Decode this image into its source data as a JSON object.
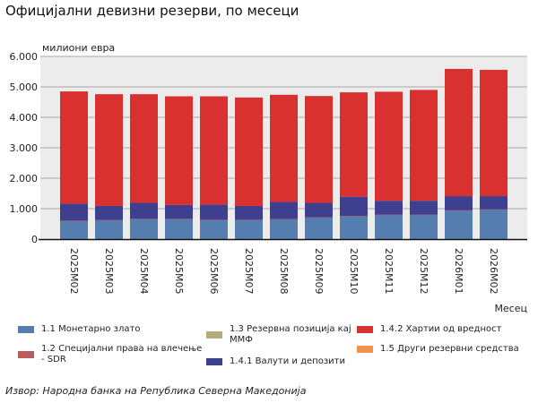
{
  "page": {
    "title": "Официјални девизни резерви, по месеци",
    "source": "Извор: Народна банка на Република Северна Македонија"
  },
  "chart_data": {
    "type": "bar",
    "stacked": true,
    "title": "Официјални девизни резерви, по месеци",
    "ylabel": "милиони евра",
    "xlabel": "Месец",
    "ylim": [
      0,
      6000
    ],
    "yticks": [
      0,
      1000,
      2000,
      3000,
      4000,
      5000,
      6000
    ],
    "ytick_labels": [
      "0",
      "1.000",
      "2.000",
      "3.000",
      "4.000",
      "5.000",
      "6.000"
    ],
    "grid": true,
    "legend_position": "bottom",
    "categories": [
      "2025M02",
      "2025M03",
      "2025M04",
      "2025M05",
      "2025M06",
      "2025M07",
      "2025M08",
      "2025M09",
      "2025M10",
      "2025M11",
      "2025M12",
      "2026M01",
      "2026M02"
    ],
    "series": [
      {
        "name": "1.1 Монетарно злато",
        "color": "#557eb0",
        "values": [
          600,
          620,
          660,
          660,
          630,
          630,
          650,
          710,
          760,
          800,
          800,
          940,
          970
        ]
      },
      {
        "name": "1.2 Специјални права на влечење - SDR",
        "color": "#b85c5c",
        "values": [
          5,
          5,
          5,
          5,
          5,
          5,
          5,
          5,
          5,
          5,
          5,
          5,
          5
        ]
      },
      {
        "name": "1.3 Резервна позиција кај ММФ",
        "color": "#b5ab78",
        "values": [
          0,
          0,
          0,
          0,
          0,
          0,
          0,
          0,
          0,
          0,
          0,
          0,
          0
        ]
      },
      {
        "name": "1.4.1 Валути и депозити",
        "color": "#3f3f8f",
        "values": [
          555,
          465,
          525,
          455,
          495,
          455,
          565,
          475,
          625,
          455,
          455,
          465,
          435
        ]
      },
      {
        "name": "1.4.2 Хартии од вредност",
        "color": "#d93030",
        "values": [
          3690,
          3670,
          3570,
          3570,
          3560,
          3560,
          3520,
          3510,
          3430,
          3580,
          3640,
          4180,
          4150
        ]
      },
      {
        "name": "1.5 Други резервни средства",
        "color": "#f2914f",
        "values": [
          0,
          0,
          0,
          0,
          0,
          0,
          0,
          0,
          0,
          0,
          0,
          0,
          0
        ]
      }
    ],
    "legend_labels": [
      [
        "1.1 Монетарно злато"
      ],
      [
        "1.2 Специјални права на влечење",
        "- SDR"
      ],
      [
        "1.3 Резервна позиција кај",
        "ММФ"
      ],
      [
        "1.4.1 Валути и депозити"
      ],
      [
        "1.4.2 Хартии од вредност"
      ],
      [
        "1.5 Други резервни средства"
      ]
    ]
  }
}
